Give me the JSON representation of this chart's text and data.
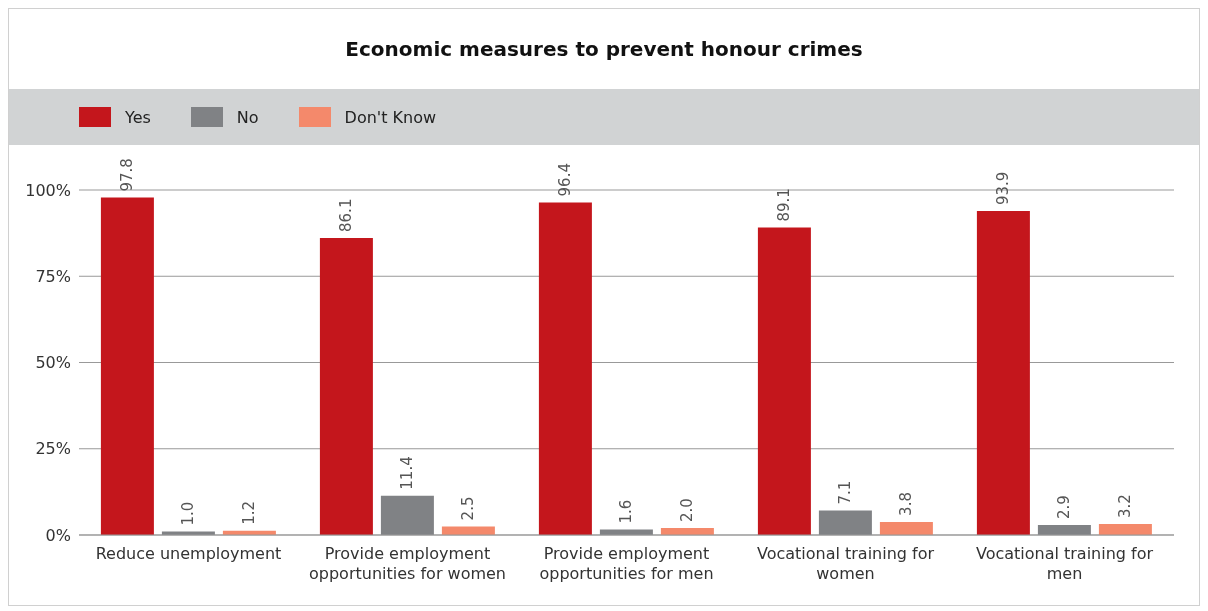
{
  "chart_data": {
    "type": "bar",
    "title": "Economic measures to prevent honour crimes",
    "categories": [
      "Reduce unemployment",
      "Provide employment opportunities for women",
      "Provide employment opportunities for men",
      "Vocational training for women",
      "Vocational training for men"
    ],
    "series": [
      {
        "name": "Yes",
        "color": "#c4161c",
        "values": [
          97.8,
          86.1,
          96.4,
          89.1,
          93.9
        ],
        "value_labels": [
          "97.8",
          "86.1",
          "96.4",
          "89.1",
          "93.9"
        ]
      },
      {
        "name": "No",
        "color": "#808285",
        "values": [
          1.0,
          11.4,
          1.6,
          7.1,
          2.9
        ],
        "value_labels": [
          "1.0",
          "11.4",
          "1.6",
          "7.1",
          "2.9"
        ]
      },
      {
        "name": "Don't Know",
        "color": "#f4896b",
        "values": [
          1.2,
          2.5,
          2.0,
          3.8,
          3.2
        ],
        "value_labels": [
          "1.2",
          "2.5",
          "2.0",
          "3.8",
          "3.2"
        ]
      }
    ],
    "ylim": [
      0,
      100
    ],
    "yticks": [
      {
        "value": 0,
        "label": "0%"
      },
      {
        "value": 25,
        "label": "25%"
      },
      {
        "value": 50,
        "label": "50%"
      },
      {
        "value": 75,
        "label": "75%"
      },
      {
        "value": 100,
        "label": "100%"
      }
    ],
    "grid": "y",
    "legend": "top left"
  }
}
